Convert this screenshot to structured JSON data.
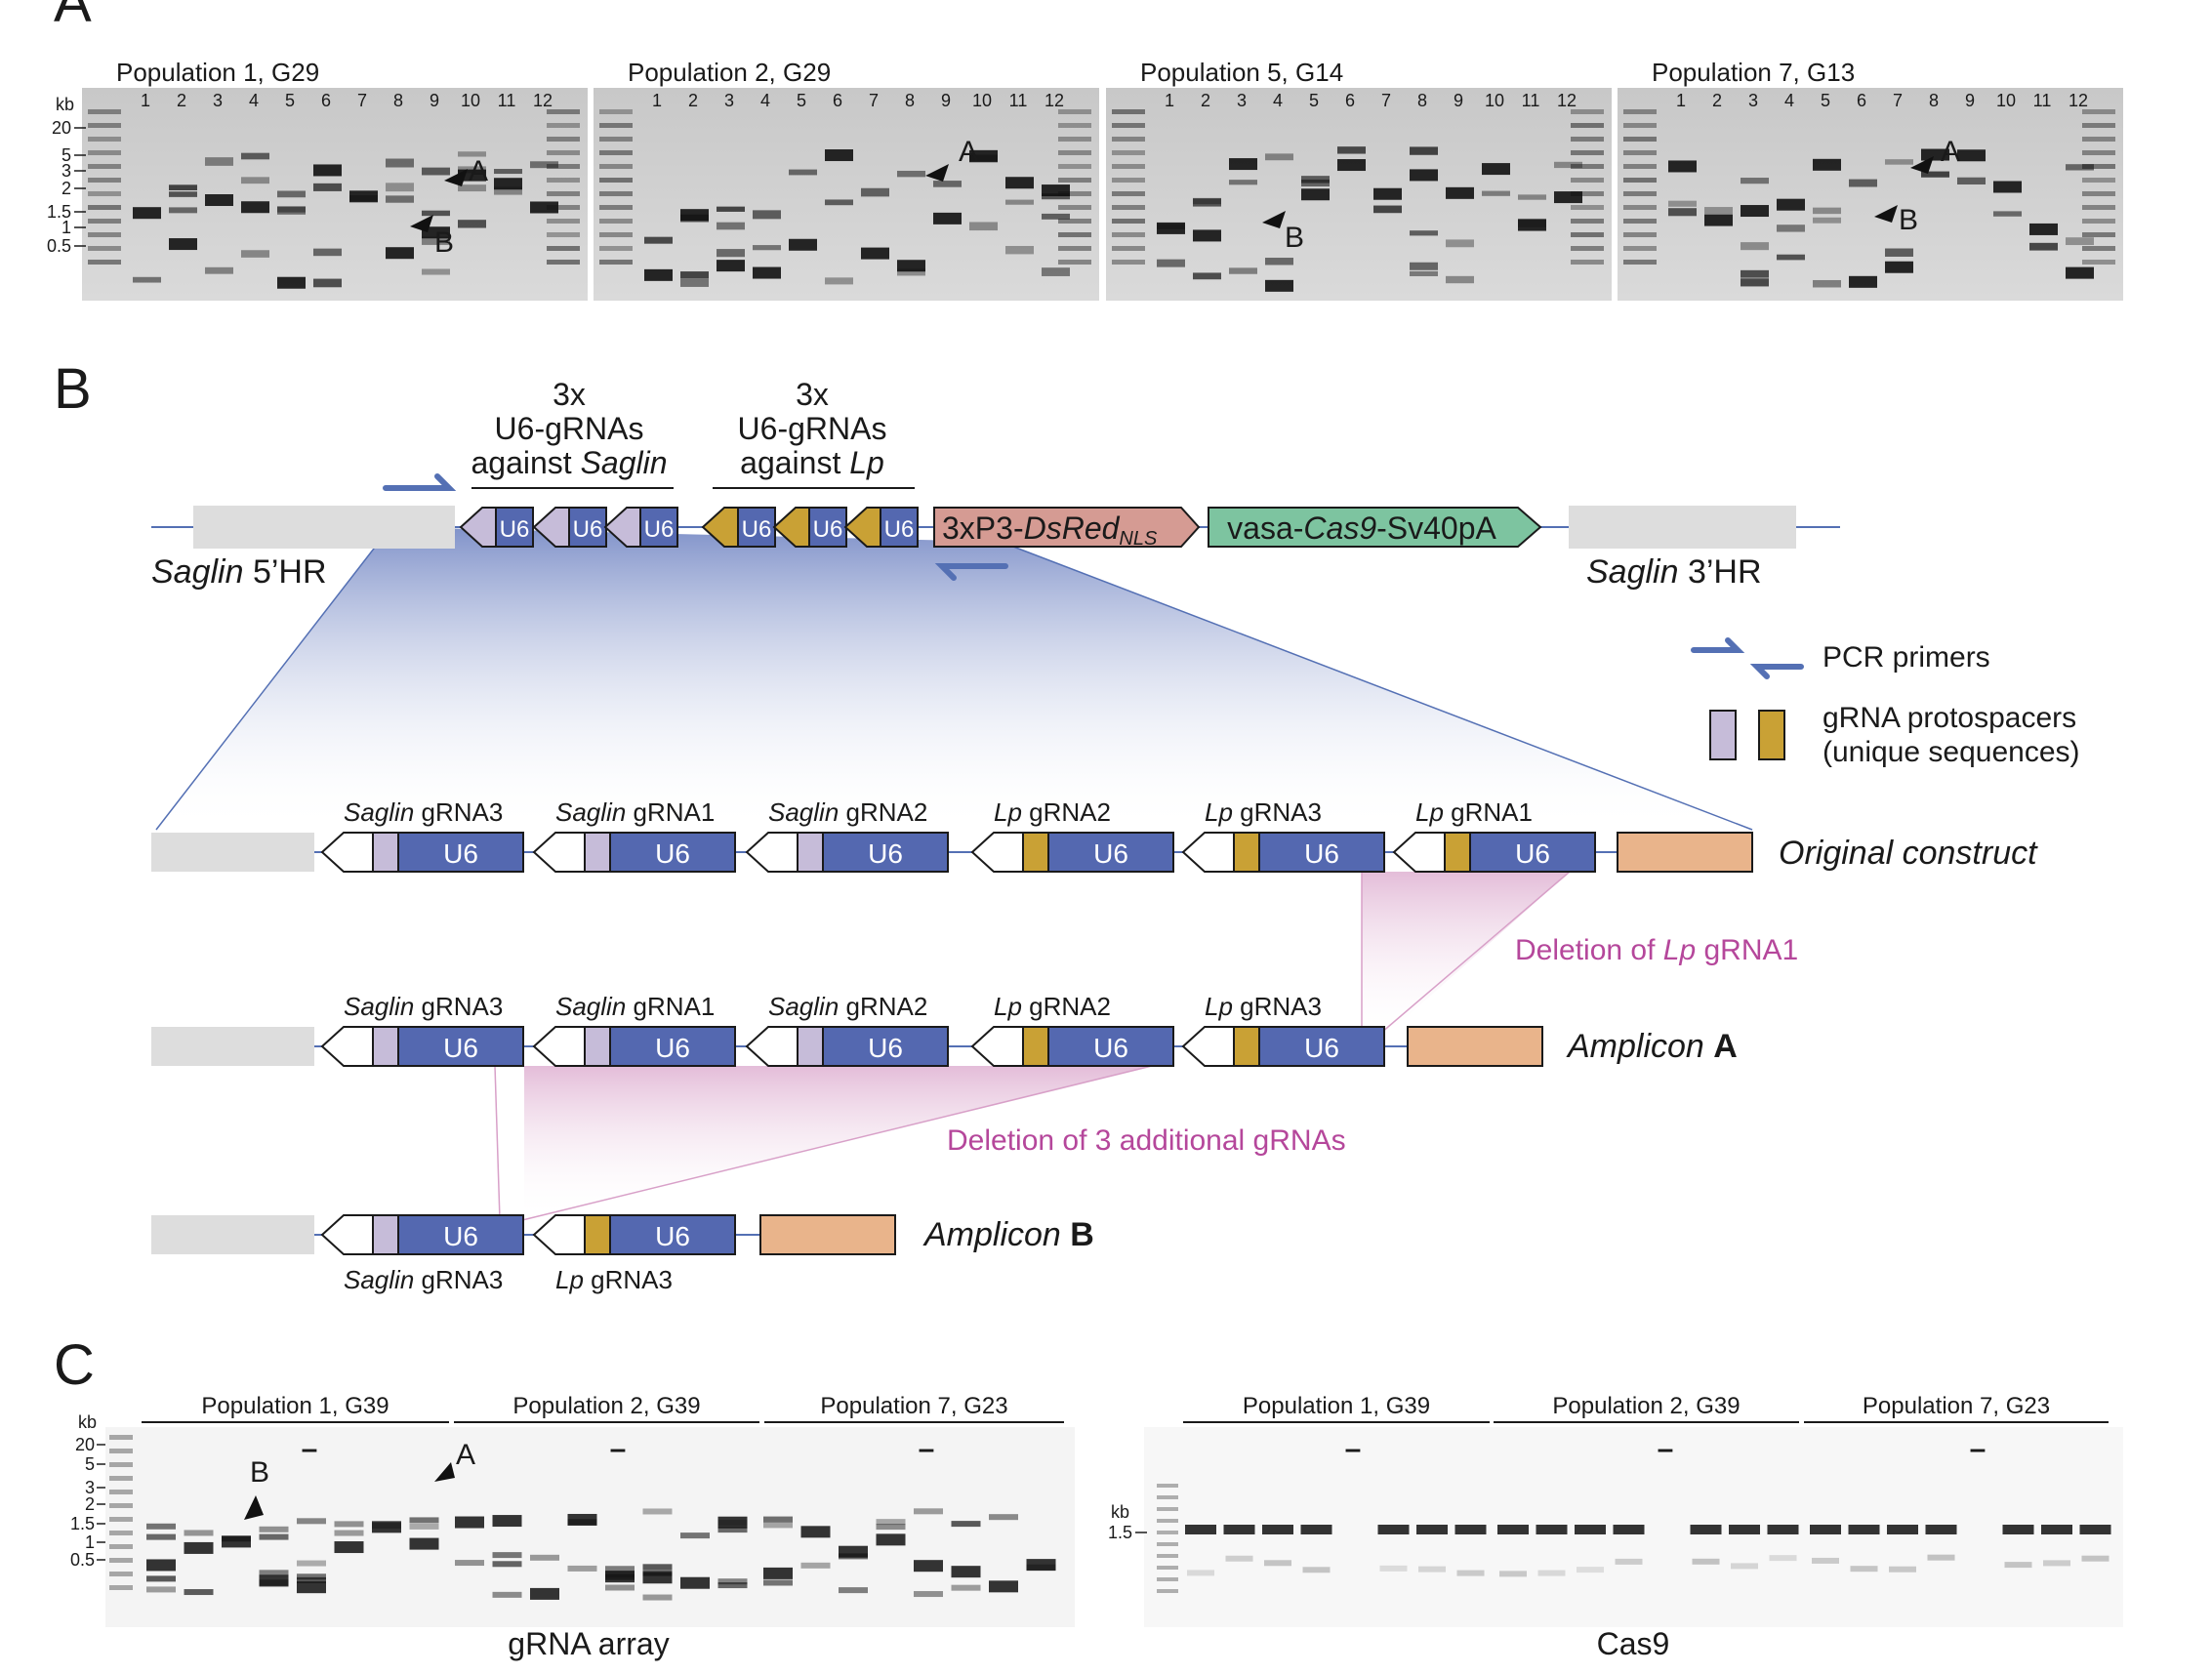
{
  "panelA": {
    "letter": "A",
    "kb_label": "kb",
    "ladder_ticks": [
      "20",
      "5",
      "3",
      "2",
      "1.5",
      "1",
      "0.5"
    ],
    "lanes": [
      "1",
      "2",
      "3",
      "4",
      "5",
      "6",
      "7",
      "8",
      "9",
      "10",
      "11",
      "12"
    ],
    "gels": [
      {
        "title": "Population 1, G29"
      },
      {
        "title": "Population 2, G29"
      },
      {
        "title": "Population 5, G14"
      },
      {
        "title": "Population 7, G13"
      }
    ],
    "band_labels": {
      "a": "A",
      "b": "B"
    }
  },
  "panelB": {
    "letter": "B",
    "header_saglin": {
      "line1": "3x",
      "line2": "U6-gRNAs",
      "line3_prefix": "against ",
      "line3_italic": "Saglin"
    },
    "header_lp": {
      "line1": "3x",
      "line2": "U6-gRNAs",
      "line3_prefix": "against ",
      "line3_italic": "Lp"
    },
    "u6": "U6",
    "dsred": {
      "prefix": "3xP3-",
      "italic": "DsRed",
      "sub": "NLS"
    },
    "cas9": {
      "prefix": "vasa-",
      "italic": "Cas9",
      "suffix": "-Sv40pA"
    },
    "hr5": {
      "italic": "Saglin",
      "suffix": " 5’HR"
    },
    "hr3": {
      "italic": "Saglin",
      "suffix": " 3’HR"
    },
    "legend": {
      "primers": "PCR primers",
      "protospacers_line1": "gRNA protospacers",
      "protospacers_line2": "(unique sequences)"
    },
    "grna_labels": [
      {
        "gene": "Saglin",
        "name": " gRNA3"
      },
      {
        "gene": "Saglin",
        "name": " gRNA1"
      },
      {
        "gene": "Saglin",
        "name": " gRNA2"
      },
      {
        "gene": "Lp",
        "name": " gRNA2"
      },
      {
        "gene": "Lp",
        "name": " gRNA3"
      },
      {
        "gene": "Lp",
        "name": " gRNA1"
      }
    ],
    "row_labels": {
      "original": "Original construct",
      "amplicon_a_prefix": "Amplicon ",
      "amplicon_a_bold": "A",
      "amplicon_b_prefix": "Amplicon ",
      "amplicon_b_bold": "B"
    },
    "deletions": {
      "lp1_prefix": "Deletion of ",
      "lp1_italic": "Lp",
      "lp1_suffix": " gRNA1",
      "three": "Deletion of 3 additional gRNAs"
    },
    "amplicon_b_labels": [
      {
        "gene": "Saglin",
        "name": " gRNA3"
      },
      {
        "gene": "Lp",
        "name": " gRNA3"
      }
    ]
  },
  "panelC": {
    "letter": "C",
    "kb_label": "kb",
    "ladder_ticks": [
      "20",
      "5",
      "3",
      "2",
      "1.5",
      "1",
      "0.5"
    ],
    "cas9_tick": "1.5",
    "groups": [
      "Population 1, G39",
      "Population 2, G39",
      "Population 7, G23"
    ],
    "neg": "–",
    "band_labels": {
      "a": "A",
      "b": "B"
    },
    "gel_left_caption": "gRNA array",
    "gel_right_caption": "Cas9"
  },
  "colors": {
    "u6": "#5468b0",
    "saglin_spacer": "#c6bcd9",
    "lp_spacer": "#c9a135",
    "dsred": "#d59b93",
    "cas9": "#7dc4a0",
    "orange_box": "#e9b48b",
    "hr_gray": "#dddddd",
    "deletion": "#b5479b",
    "primer": "#5470b4"
  }
}
